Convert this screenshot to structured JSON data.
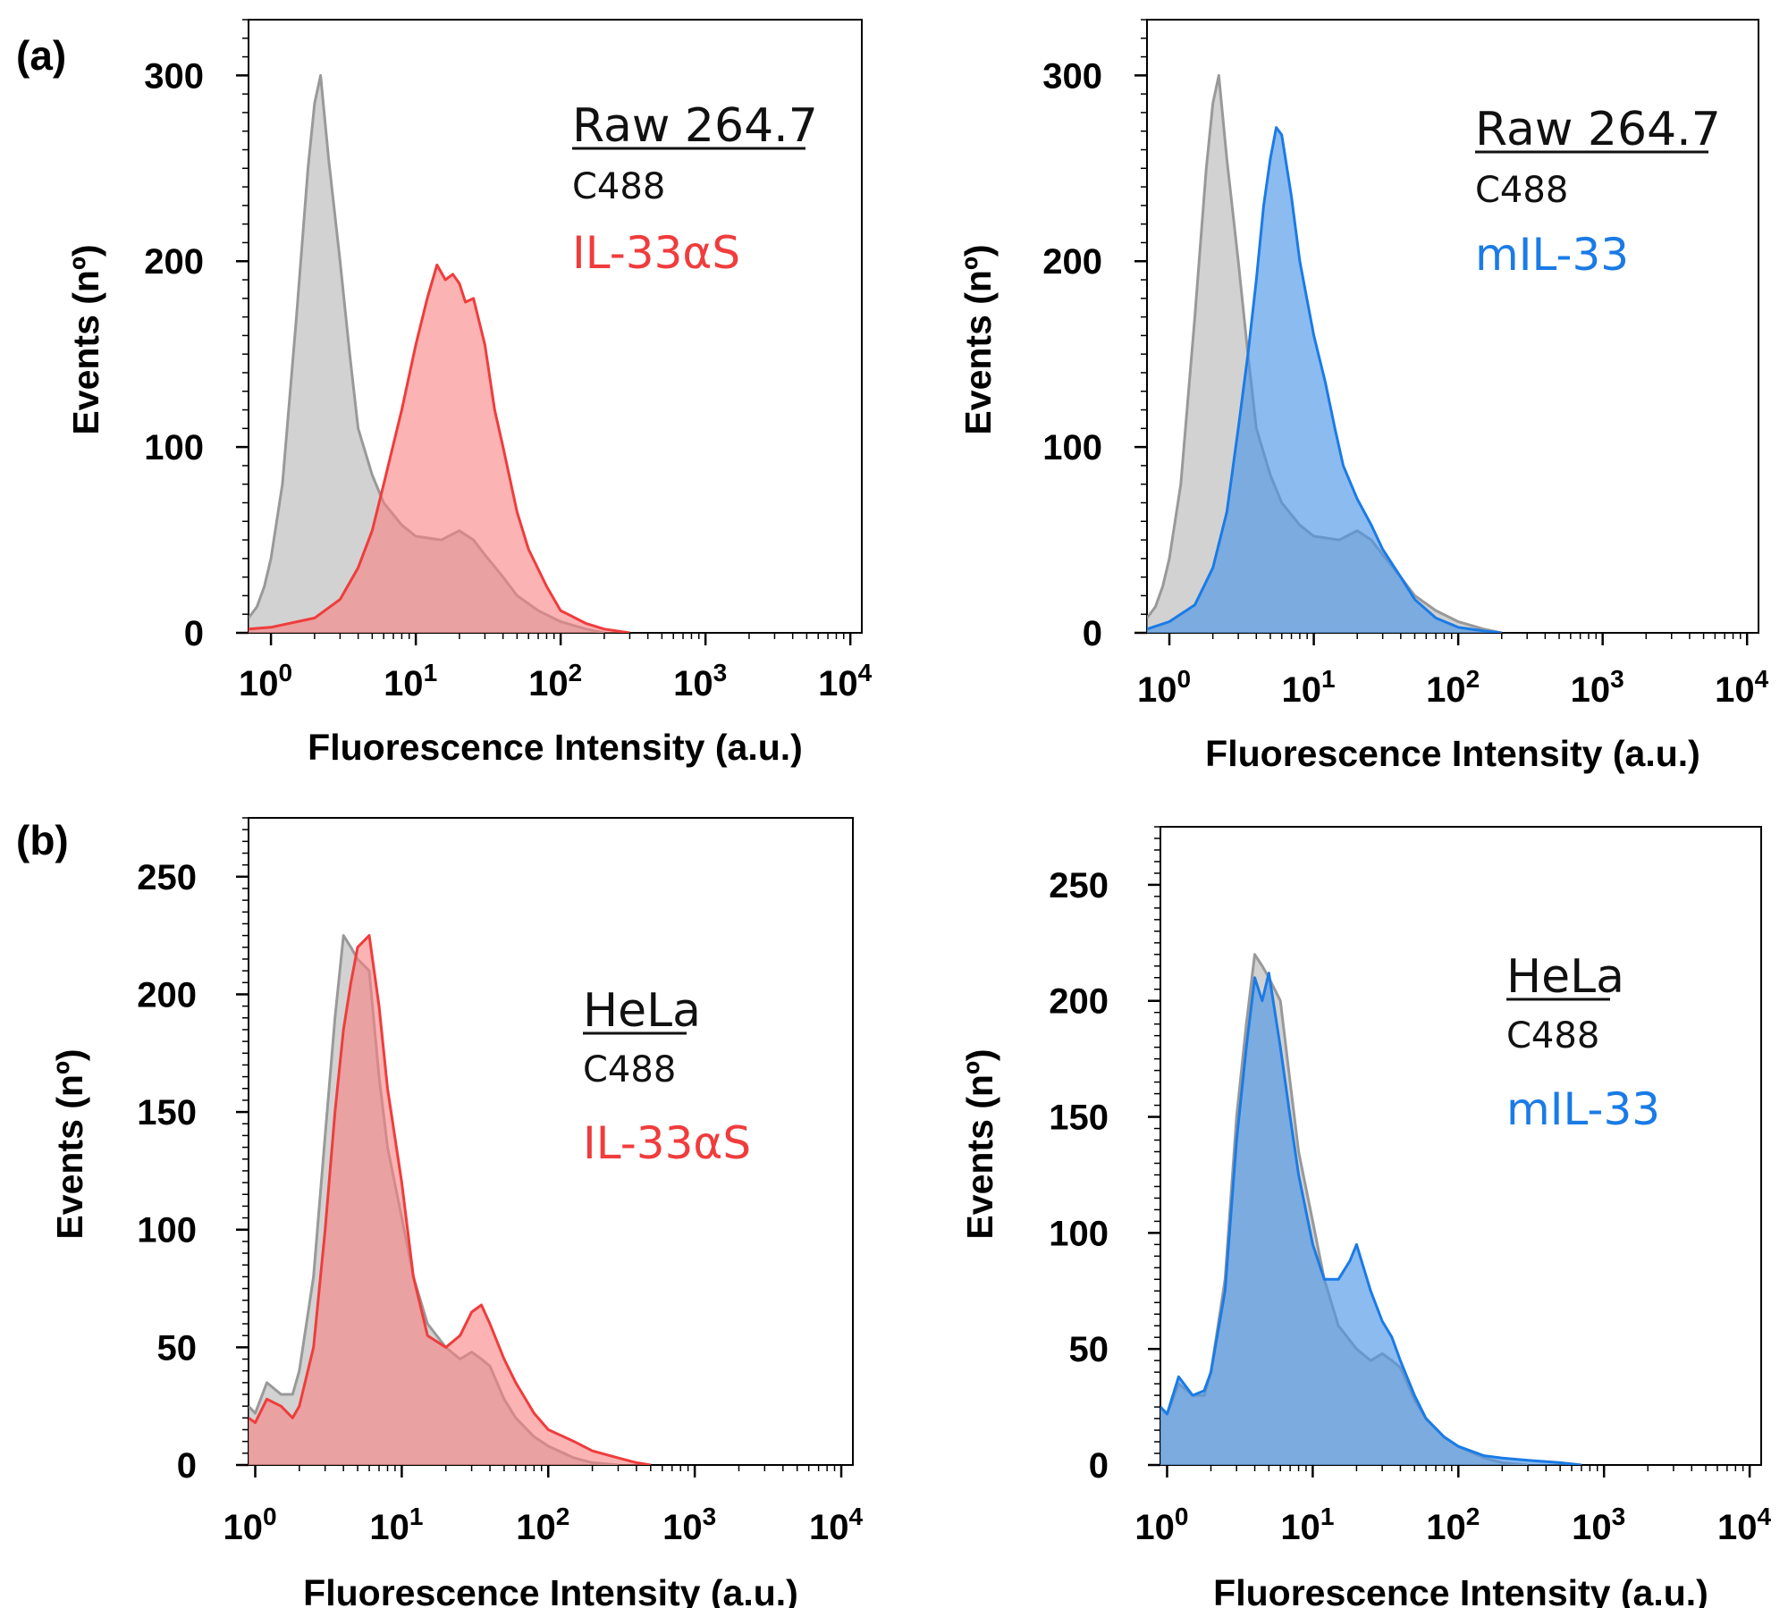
{
  "panel_labels": [
    "(a)",
    "(b)"
  ],
  "colors": {
    "control_fill": "#b4b4b4",
    "control_stroke": "#999999",
    "red_fill": "#f98080",
    "red_stroke": "#f03c3c",
    "blue_fill": "#4f97e6",
    "blue_stroke": "#1a7be6"
  },
  "chart_data": [
    {
      "type": "area",
      "panel": "(a)",
      "cell_title": "Raw 264.7",
      "xlabel": "Fluorescence Intensity (a.u.)",
      "ylabel": "Events (nº)",
      "xscale": "log",
      "xlim": [
        0.7,
        12000
      ],
      "ylim": [
        0,
        330
      ],
      "yticks": [
        0,
        100,
        200,
        300
      ],
      "xticks": [
        1,
        10,
        100,
        1000,
        10000
      ],
      "xticklabels": [
        "0",
        "1",
        "2",
        "3",
        "4"
      ],
      "x_tick_base": "10",
      "legend": [
        "C488",
        "IL-33αS"
      ],
      "series": [
        {
          "name": "C488",
          "color": "control",
          "points": [
            [
              0.7,
              8
            ],
            [
              0.8,
              14
            ],
            [
              0.9,
              25
            ],
            [
              1,
              40
            ],
            [
              1.2,
              80
            ],
            [
              1.5,
              170
            ],
            [
              1.8,
              250
            ],
            [
              2,
              285
            ],
            [
              2.2,
              300
            ],
            [
              2.5,
              255
            ],
            [
              3,
              200
            ],
            [
              3.5,
              150
            ],
            [
              4,
              110
            ],
            [
              5,
              85
            ],
            [
              6,
              70
            ],
            [
              8,
              58
            ],
            [
              10,
              52
            ],
            [
              15,
              50
            ],
            [
              20,
              55
            ],
            [
              25,
              50
            ],
            [
              30,
              42
            ],
            [
              40,
              30
            ],
            [
              50,
              20
            ],
            [
              70,
              12
            ],
            [
              100,
              6
            ],
            [
              150,
              2
            ],
            [
              200,
              0
            ]
          ]
        },
        {
          "name": "IL-33αS",
          "color": "red",
          "points": [
            [
              0.7,
              2
            ],
            [
              1,
              3
            ],
            [
              2,
              8
            ],
            [
              3,
              18
            ],
            [
              4,
              35
            ],
            [
              5,
              55
            ],
            [
              6,
              80
            ],
            [
              8,
              120
            ],
            [
              10,
              155
            ],
            [
              12,
              180
            ],
            [
              14,
              198
            ],
            [
              16,
              190
            ],
            [
              18,
              193
            ],
            [
              20,
              188
            ],
            [
              22,
              178
            ],
            [
              25,
              180
            ],
            [
              30,
              155
            ],
            [
              35,
              120
            ],
            [
              40,
              100
            ],
            [
              50,
              65
            ],
            [
              60,
              45
            ],
            [
              80,
              25
            ],
            [
              100,
              12
            ],
            [
              150,
              5
            ],
            [
              200,
              2
            ],
            [
              300,
              0
            ]
          ]
        }
      ]
    },
    {
      "type": "area",
      "panel": "(a)",
      "cell_title": "Raw 264.7",
      "xlabel": "Fluorescence Intensity (a.u.)",
      "ylabel": "Events (nº)",
      "xscale": "log",
      "xlim": [
        0.7,
        12000
      ],
      "ylim": [
        0,
        330
      ],
      "yticks": [
        0,
        100,
        200,
        300
      ],
      "xticks": [
        1,
        10,
        100,
        1000,
        10000
      ],
      "xticklabels": [
        "0",
        "1",
        "2",
        "3",
        "4"
      ],
      "x_tick_base": "10",
      "legend": [
        "C488",
        "mIL-33"
      ],
      "series": [
        {
          "name": "C488",
          "color": "control",
          "points": [
            [
              0.7,
              8
            ],
            [
              0.8,
              14
            ],
            [
              0.9,
              25
            ],
            [
              1,
              40
            ],
            [
              1.2,
              80
            ],
            [
              1.5,
              170
            ],
            [
              1.8,
              250
            ],
            [
              2,
              285
            ],
            [
              2.2,
              300
            ],
            [
              2.5,
              255
            ],
            [
              3,
              200
            ],
            [
              3.5,
              150
            ],
            [
              4,
              110
            ],
            [
              5,
              85
            ],
            [
              6,
              70
            ],
            [
              8,
              58
            ],
            [
              10,
              52
            ],
            [
              15,
              50
            ],
            [
              20,
              55
            ],
            [
              25,
              50
            ],
            [
              30,
              42
            ],
            [
              40,
              30
            ],
            [
              50,
              20
            ],
            [
              70,
              12
            ],
            [
              100,
              6
            ],
            [
              150,
              2
            ],
            [
              200,
              0
            ]
          ]
        },
        {
          "name": "mIL-33",
          "color": "blue",
          "points": [
            [
              0.7,
              2
            ],
            [
              1,
              6
            ],
            [
              1.5,
              15
            ],
            [
              2,
              35
            ],
            [
              2.5,
              65
            ],
            [
              3,
              110
            ],
            [
              3.5,
              150
            ],
            [
              4,
              190
            ],
            [
              4.5,
              230
            ],
            [
              5,
              255
            ],
            [
              5.5,
              272
            ],
            [
              6,
              268
            ],
            [
              7,
              235
            ],
            [
              8,
              200
            ],
            [
              10,
              160
            ],
            [
              12,
              135
            ],
            [
              14,
              110
            ],
            [
              16,
              90
            ],
            [
              20,
              72
            ],
            [
              25,
              58
            ],
            [
              30,
              45
            ],
            [
              40,
              30
            ],
            [
              50,
              18
            ],
            [
              70,
              8
            ],
            [
              100,
              3
            ],
            [
              150,
              1
            ],
            [
              200,
              0
            ]
          ]
        }
      ]
    },
    {
      "type": "area",
      "panel": "(b)",
      "cell_title": "HeLa",
      "xlabel": "Fluorescence Intensity (a.u.)",
      "ylabel": "Events (nº)",
      "xscale": "log",
      "xlim": [
        0.9,
        12000
      ],
      "ylim": [
        0,
        275
      ],
      "yticks": [
        0,
        50,
        100,
        150,
        200,
        250
      ],
      "xticks": [
        1,
        10,
        100,
        1000,
        10000
      ],
      "xticklabels": [
        "0",
        "1",
        "2",
        "3",
        "4"
      ],
      "x_tick_base": "10",
      "legend": [
        "C488",
        "IL-33αS"
      ],
      "series": [
        {
          "name": "C488",
          "color": "control",
          "points": [
            [
              0.9,
              25
            ],
            [
              1,
              22
            ],
            [
              1.2,
              35
            ],
            [
              1.5,
              30
            ],
            [
              1.8,
              30
            ],
            [
              2,
              40
            ],
            [
              2.5,
              80
            ],
            [
              3,
              140
            ],
            [
              3.5,
              190
            ],
            [
              4,
              225
            ],
            [
              4.5,
              220
            ],
            [
              5,
              215
            ],
            [
              6,
              210
            ],
            [
              7,
              165
            ],
            [
              8,
              135
            ],
            [
              10,
              105
            ],
            [
              12,
              80
            ],
            [
              15,
              60
            ],
            [
              20,
              50
            ],
            [
              25,
              45
            ],
            [
              30,
              48
            ],
            [
              35,
              45
            ],
            [
              40,
              42
            ],
            [
              50,
              28
            ],
            [
              60,
              20
            ],
            [
              80,
              12
            ],
            [
              100,
              8
            ],
            [
              150,
              3
            ],
            [
              200,
              1
            ],
            [
              300,
              0
            ]
          ]
        },
        {
          "name": "IL-33αS",
          "color": "red",
          "points": [
            [
              0.9,
              20
            ],
            [
              1,
              18
            ],
            [
              1.2,
              28
            ],
            [
              1.5,
              25
            ],
            [
              1.8,
              20
            ],
            [
              2,
              25
            ],
            [
              2.5,
              50
            ],
            [
              3,
              100
            ],
            [
              3.5,
              150
            ],
            [
              4,
              185
            ],
            [
              4.5,
              205
            ],
            [
              5,
              220
            ],
            [
              6,
              225
            ],
            [
              7,
              195
            ],
            [
              8,
              160
            ],
            [
              10,
              120
            ],
            [
              12,
              80
            ],
            [
              15,
              55
            ],
            [
              20,
              50
            ],
            [
              25,
              55
            ],
            [
              30,
              65
            ],
            [
              35,
              68
            ],
            [
              40,
              60
            ],
            [
              50,
              45
            ],
            [
              60,
              35
            ],
            [
              80,
              22
            ],
            [
              100,
              15
            ],
            [
              150,
              10
            ],
            [
              200,
              6
            ],
            [
              300,
              3
            ],
            [
              400,
              1
            ],
            [
              500,
              0
            ]
          ]
        }
      ]
    },
    {
      "type": "area",
      "panel": "(b)",
      "cell_title": "HeLa",
      "xlabel": "Fluorescence Intensity (a.u.)",
      "ylabel": "Events (nº)",
      "xscale": "log",
      "xlim": [
        0.9,
        12000
      ],
      "ylim": [
        0,
        275
      ],
      "yticks": [
        0,
        50,
        100,
        150,
        200,
        250
      ],
      "xticks": [
        1,
        10,
        100,
        1000,
        10000
      ],
      "xticklabels": [
        "0",
        "1",
        "2",
        "3",
        "4"
      ],
      "x_tick_base": "10",
      "legend": [
        "C488",
        "mIL-33"
      ],
      "series": [
        {
          "name": "C488",
          "color": "control",
          "points": [
            [
              0.9,
              25
            ],
            [
              1,
              22
            ],
            [
              1.2,
              35
            ],
            [
              1.5,
              30
            ],
            [
              1.8,
              30
            ],
            [
              2,
              40
            ],
            [
              2.5,
              80
            ],
            [
              3,
              150
            ],
            [
              3.5,
              190
            ],
            [
              4,
              220
            ],
            [
              4.5,
              215
            ],
            [
              5,
              210
            ],
            [
              6,
              200
            ],
            [
              7,
              165
            ],
            [
              8,
              135
            ],
            [
              10,
              105
            ],
            [
              12,
              80
            ],
            [
              15,
              60
            ],
            [
              20,
              50
            ],
            [
              25,
              45
            ],
            [
              30,
              48
            ],
            [
              35,
              45
            ],
            [
              40,
              42
            ],
            [
              50,
              28
            ],
            [
              60,
              20
            ],
            [
              80,
              12
            ],
            [
              100,
              8
            ],
            [
              150,
              3
            ],
            [
              200,
              1
            ],
            [
              300,
              0
            ]
          ]
        },
        {
          "name": "mIL-33",
          "color": "blue",
          "points": [
            [
              0.9,
              25
            ],
            [
              1,
              22
            ],
            [
              1.2,
              38
            ],
            [
              1.5,
              30
            ],
            [
              1.8,
              32
            ],
            [
              2,
              40
            ],
            [
              2.5,
              75
            ],
            [
              3,
              140
            ],
            [
              3.5,
              180
            ],
            [
              4,
              210
            ],
            [
              4.5,
              200
            ],
            [
              5,
              212
            ],
            [
              6,
              180
            ],
            [
              7,
              150
            ],
            [
              8,
              125
            ],
            [
              10,
              95
            ],
            [
              12,
              80
            ],
            [
              15,
              80
            ],
            [
              18,
              88
            ],
            [
              20,
              95
            ],
            [
              25,
              75
            ],
            [
              30,
              62
            ],
            [
              35,
              55
            ],
            [
              40,
              45
            ],
            [
              50,
              30
            ],
            [
              60,
              20
            ],
            [
              80,
              12
            ],
            [
              100,
              8
            ],
            [
              150,
              4
            ],
            [
              200,
              3
            ],
            [
              300,
              2
            ],
            [
              500,
              1
            ],
            [
              700,
              0
            ]
          ]
        }
      ]
    }
  ]
}
